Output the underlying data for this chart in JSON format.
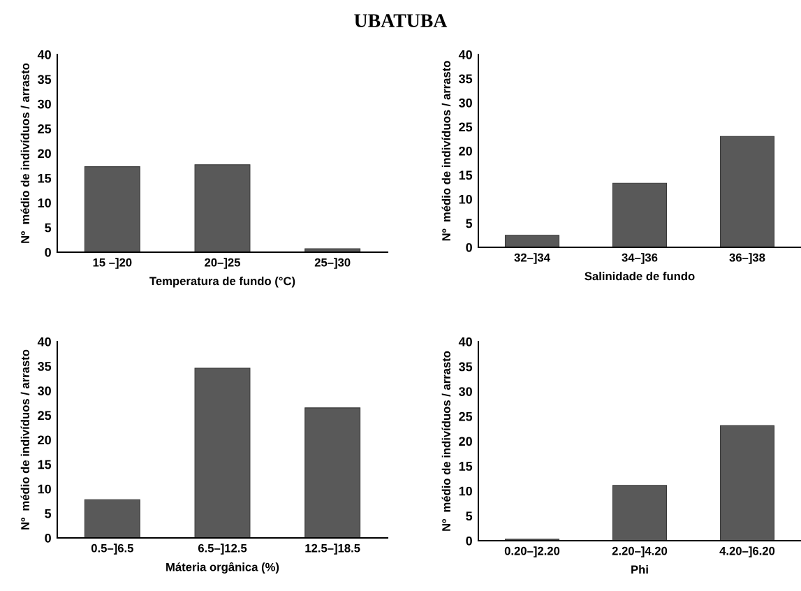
{
  "chart_data": [
    {
      "type": "bar",
      "title": "UBATUBA",
      "xlabel": "Temperatura de fundo (°C)",
      "ylabel": "Nº  médio de indivíduos / arrasto",
      "categories": [
        "15 –]20",
        "20–]25",
        "25–]30"
      ],
      "values": [
        17.3,
        17.7,
        0.7
      ],
      "color": "#595959",
      "ylim": [
        0,
        40
      ],
      "yticks": [
        0,
        5,
        10,
        15,
        20,
        25,
        30,
        35,
        40
      ],
      "grid": false
    },
    {
      "type": "bar",
      "xlabel": "Salinidade de fundo",
      "ylabel": "Nº  médio de indivíduos / arrasto",
      "categories": [
        "32–]34",
        "34–]36",
        "36–]38"
      ],
      "values": [
        2.5,
        13.3,
        23.0
      ],
      "color": "#595959",
      "ylim": [
        0,
        40
      ],
      "yticks": [
        0,
        5,
        10,
        15,
        20,
        25,
        30,
        35,
        40
      ],
      "grid": false
    },
    {
      "type": "bar",
      "xlabel": "Máteria orgânica (%)",
      "ylabel": "Nº  médio de indivíduos / arrasto",
      "categories": [
        "0.5–]6.5",
        "6.5–]12.5",
        "12.5–]18.5"
      ],
      "values": [
        7.8,
        34.6,
        26.5
      ],
      "color": "#595959",
      "ylim": [
        0,
        40
      ],
      "yticks": [
        0,
        5,
        10,
        15,
        20,
        25,
        30,
        35,
        40
      ],
      "grid": false
    },
    {
      "type": "bar",
      "xlabel": "Phi",
      "ylabel": "Nº  médio de indivíduos / arrasto",
      "categories": [
        "0.20–]2.20",
        "2.20–]4.20",
        "4.20–]6.20"
      ],
      "values": [
        0.3,
        11.1,
        23.1
      ],
      "color": "#595959",
      "ylim": [
        0,
        40
      ],
      "yticks": [
        0,
        5,
        10,
        15,
        20,
        25,
        30,
        35,
        40
      ],
      "grid": false
    }
  ]
}
